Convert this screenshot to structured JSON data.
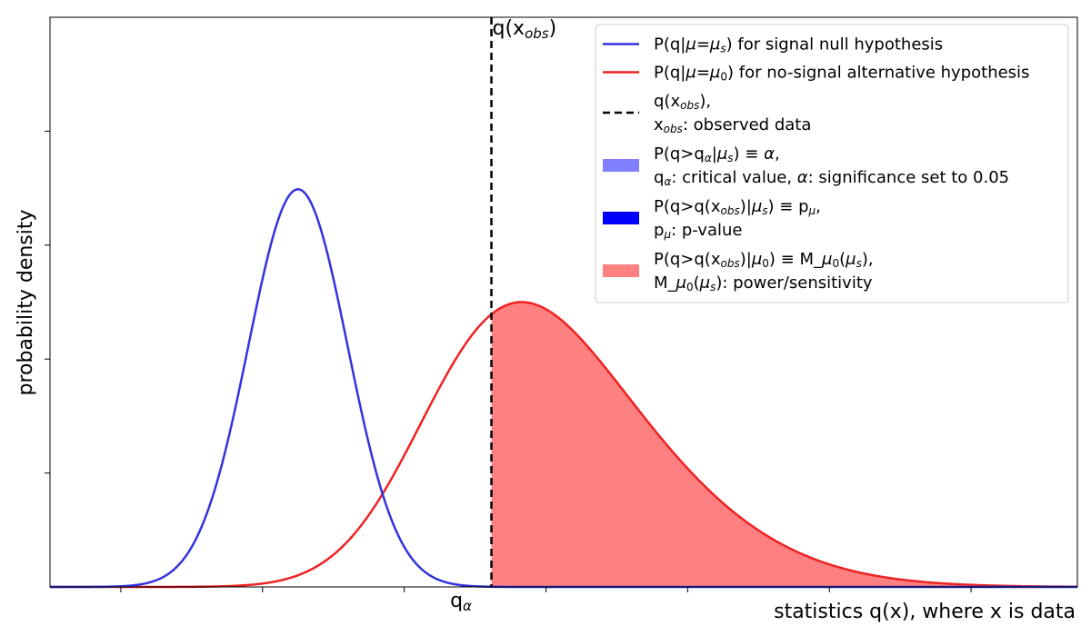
{
  "chart_data": {
    "type": "area",
    "xlabel": "statistics q(x), where x is data",
    "ylabel": "probability density",
    "xlim": [
      -3.0,
      11.5
    ],
    "ylim": [
      0,
      1.0
    ],
    "x_ticks": [
      -2,
      0,
      2,
      4,
      6,
      8,
      10
    ],
    "x_tick_labels": [
      "",
      "",
      "",
      "",
      "",
      "",
      ""
    ],
    "y_ticks": [
      0.2,
      0.4,
      0.6,
      0.8
    ],
    "y_tick_labels": [
      "",
      "",
      "",
      ""
    ],
    "grid": false,
    "legend_position": "top-right",
    "critical_value": {
      "x": 2.8,
      "label": "q",
      "sub": "α"
    },
    "observed_value": {
      "x": 3.23,
      "label": "q(x",
      "sub": "obs",
      "suffix": ")"
    },
    "series": [
      {
        "name": "P(q|μ=μ_s) for signal null hypothesis",
        "kind": "line",
        "color": "#3333dd",
        "distribution": "normal",
        "x": [
          -3,
          -2,
          -1.5,
          -1,
          -0.5,
          0,
          0.5,
          1,
          1.5,
          2,
          2.5,
          3,
          3.5,
          4,
          5,
          6,
          8,
          11.5
        ],
        "y": [
          0.0,
          0.01,
          0.047,
          0.145,
          0.33,
          0.555,
          0.698,
          0.555,
          0.33,
          0.145,
          0.047,
          0.01,
          0.002,
          0.0,
          0.0,
          0.0,
          0.0,
          0.0
        ]
      },
      {
        "name": "P(q|μ=μ₀) for no-signal alternative hypothesis",
        "kind": "line",
        "color": "#ee2222",
        "distribution": "skew-normal",
        "x": [
          -3,
          -1,
          0,
          1,
          2,
          3,
          3.5,
          4,
          4.5,
          5,
          6,
          7,
          8,
          9,
          10,
          11.5
        ],
        "y": [
          0.0,
          0.005,
          0.03,
          0.1,
          0.26,
          0.43,
          0.47,
          0.5,
          0.47,
          0.41,
          0.25,
          0.11,
          0.035,
          0.008,
          0.001,
          0.0
        ]
      }
    ],
    "legend": [
      {
        "kind": "line",
        "color": "#3333dd",
        "lines": [
          [
            {
              "t": "P(q|"
            },
            {
              "t": "μ",
              "i": true
            },
            {
              "t": "="
            },
            {
              "t": "μ",
              "i": true
            },
            {
              "t": "s",
              "sub": true,
              "i": true
            },
            {
              "t": ") for signal null hypothesis"
            }
          ]
        ]
      },
      {
        "kind": "line",
        "color": "#ee2222",
        "lines": [
          [
            {
              "t": "P(q|"
            },
            {
              "t": "μ",
              "i": true
            },
            {
              "t": "="
            },
            {
              "t": "μ",
              "i": true
            },
            {
              "t": "0",
              "sub": true
            },
            {
              "t": ") for no-signal alternative hypothesis"
            }
          ]
        ]
      },
      {
        "kind": "dash",
        "color": "#000000",
        "lines": [
          [
            {
              "t": "q(x"
            },
            {
              "t": "obs",
              "sub": true,
              "i": true
            },
            {
              "t": "),"
            }
          ],
          [
            {
              "t": "x"
            },
            {
              "t": "obs",
              "sub": true,
              "i": true
            },
            {
              "t": ": observed data"
            }
          ]
        ]
      },
      {
        "kind": "patch",
        "color": "#8080ff",
        "lines": [
          [
            {
              "t": "P(q>q"
            },
            {
              "t": "α",
              "sub": true,
              "i": true
            },
            {
              "t": "|"
            },
            {
              "t": "μ",
              "i": true
            },
            {
              "t": "s",
              "sub": true,
              "i": true
            },
            {
              "t": ")  ≡ "
            },
            {
              "t": "α",
              "i": true
            },
            {
              "t": ","
            }
          ],
          [
            {
              "t": "q"
            },
            {
              "t": "α",
              "sub": true,
              "i": true
            },
            {
              "t": ": critical value, "
            },
            {
              "t": "α",
              "i": true
            },
            {
              "t": ": significance set to 0.05"
            }
          ]
        ]
      },
      {
        "kind": "patch",
        "color": "#0000ff",
        "lines": [
          [
            {
              "t": "P(q>q(x"
            },
            {
              "t": "obs",
              "sub": true,
              "i": true
            },
            {
              "t": ")|"
            },
            {
              "t": "μ",
              "i": true
            },
            {
              "t": "s",
              "sub": true,
              "i": true
            },
            {
              "t": ")  ≡  p"
            },
            {
              "t": "μ",
              "sub": true,
              "i": true
            },
            {
              "t": ","
            }
          ],
          [
            {
              "t": "p"
            },
            {
              "t": "μ",
              "sub": true,
              "i": true
            },
            {
              "t": ": p-value"
            }
          ]
        ]
      },
      {
        "kind": "patch",
        "color": "#ff8080",
        "lines": [
          [
            {
              "t": "P(q>q(x"
            },
            {
              "t": "obs",
              "sub": true,
              "i": true
            },
            {
              "t": ")|"
            },
            {
              "t": "μ",
              "i": true
            },
            {
              "t": "0",
              "sub": true
            },
            {
              "t": ")  ≡  M_"
            },
            {
              "t": "μ",
              "i": true
            },
            {
              "t": "0",
              "sub": true
            },
            {
              "t": "("
            },
            {
              "t": "μ",
              "i": true
            },
            {
              "t": "s",
              "sub": true,
              "i": true
            },
            {
              "t": "),"
            }
          ],
          [
            {
              "t": "M_"
            },
            {
              "t": "μ",
              "i": true
            },
            {
              "t": "0",
              "sub": true
            },
            {
              "t": "("
            },
            {
              "t": "μ",
              "i": true
            },
            {
              "t": "s",
              "sub": true,
              "i": true
            },
            {
              "t": "): power/sensitivity"
            }
          ]
        ]
      }
    ]
  }
}
